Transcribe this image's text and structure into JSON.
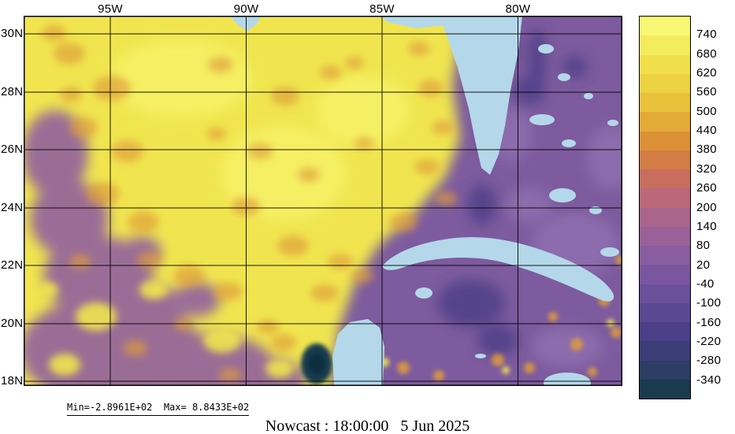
{
  "caption": "Nowcast : 18:00:00   5 Jun 2025",
  "stats": {
    "text": "Min=-2.8961E+02  Max= 8.8433E+02"
  },
  "axes": {
    "lat_ticks": [
      "30N",
      "28N",
      "26N",
      "24N",
      "22N",
      "20N",
      "18N"
    ],
    "lon_ticks": [
      "95W",
      "90W",
      "85W",
      "80W"
    ]
  },
  "colorbar": {
    "tick_labels": [
      "740",
      "680",
      "620",
      "560",
      "500",
      "440",
      "380",
      "320",
      "260",
      "200",
      "140",
      "80",
      "20",
      "-40",
      "-100",
      "-160",
      "-220",
      "-280",
      "-340"
    ],
    "segment_colors": [
      "#f9f874",
      "#f3ec5c",
      "#f0df4b",
      "#edd242",
      "#e9c13b",
      "#e3aa38",
      "#dc9137",
      "#d37c46",
      "#c96e5e",
      "#bb697a",
      "#aa658d",
      "#9a6199",
      "#8a5ca0",
      "#7a56a0",
      "#6a4f9b",
      "#5b4892",
      "#4b4087",
      "#3c3e78",
      "#2c3e64",
      "#1a3b4e"
    ]
  },
  "colors": {
    "gulf_high": "#f0e54f",
    "gulf_bright": "#f8f46c",
    "atlantic_low": "#7d5b9e",
    "atlantic_light": "#9a7ab8",
    "dark_purple": "#4b3e86",
    "southwest_mauve": "#93639d",
    "orange_mid": "#df9d3a",
    "land_mask": "#b4d8ea",
    "dark_minimum": "#143a4e",
    "grid": "#000000",
    "background": "#ffffff"
  },
  "chart_data": {
    "type": "heatmap",
    "title": "Nowcast : 18:00:00   5 Jun 2025",
    "region": "Gulf of Mexico and western North Atlantic / Caribbean",
    "x_axis": {
      "ticks": [
        "95W",
        "90W",
        "85W",
        "80W"
      ],
      "approx_range_deg_west": [
        98,
        76
      ]
    },
    "y_axis": {
      "ticks": [
        "30N",
        "28N",
        "26N",
        "24N",
        "22N",
        "20N",
        "18N"
      ],
      "approx_range_deg_north": [
        17.8,
        30.6
      ]
    },
    "stat_min": -289.61,
    "stat_max": 884.33,
    "colorbar_levels": [
      740,
      680,
      620,
      560,
      500,
      440,
      380,
      320,
      260,
      200,
      140,
      80,
      20,
      -40,
      -100,
      -160,
      -220,
      -280,
      -340
    ],
    "legend_position": "right",
    "grid": true,
    "land_mask_color": "light blue",
    "approximate_field_by_region": [
      {
        "region": "central and eastern Gulf of Mexico",
        "approx_value_range": [
          560,
          740
        ]
      },
      {
        "region": "western Gulf rim and Mexican coastal waters",
        "approx_value_range": [
          80,
          500
        ]
      },
      {
        "region": "Bay of Campeche local minimum (dark spot)",
        "approx_value_range": [
          -340,
          -220
        ]
      },
      {
        "region": "Atlantic east of Florida and Bahamas",
        "approx_value_range": [
          -160,
          140
        ]
      },
      {
        "region": "Caribbean south of Cuba",
        "approx_value_range": [
          -220,
          200
        ]
      },
      {
        "region": "scattered warm speckles in southeast corner",
        "approx_value_range": [
          260,
          500
        ]
      },
      {
        "region": "land (masked)",
        "approx_value_range": null
      }
    ]
  }
}
